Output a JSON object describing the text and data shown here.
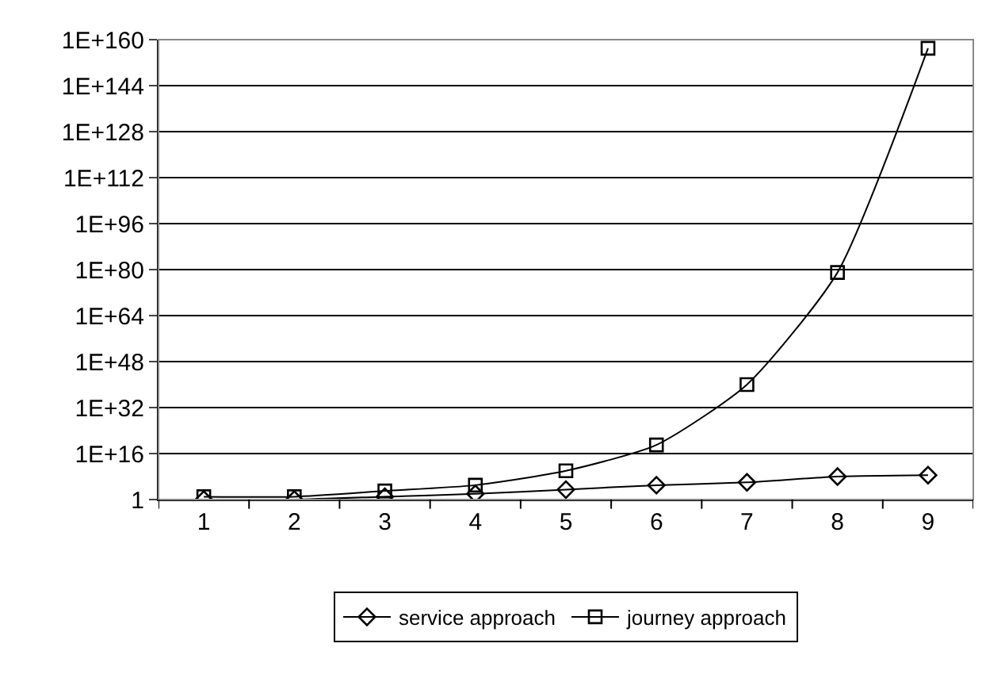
{
  "chart_data": {
    "type": "line",
    "categories": [
      "1",
      "2",
      "3",
      "4",
      "5",
      "6",
      "7",
      "8",
      "9"
    ],
    "series": [
      {
        "name": "service approach",
        "color": "#000000",
        "marker": "diamond",
        "values": [
          1,
          1,
          10,
          100,
          3000,
          100000.0,
          1000000.0,
          100000000.0,
          300000000.0
        ]
      },
      {
        "name": "journey approach",
        "color": "#000000",
        "marker": "square",
        "values": [
          10,
          10,
          1000,
          100000.0,
          10000000000.0,
          1e+19,
          1e+40,
          1e+79,
          1e+157
        ]
      }
    ],
    "log": "y",
    "ylim": [
      1,
      1e+160
    ],
    "yticks": [
      1,
      {
        "value": 1e+16,
        "label": "1E+16"
      },
      {
        "value": 1e+32,
        "label": "1E+32"
      },
      {
        "value": 1e+48,
        "label": "1E+48"
      },
      {
        "value": 1e+64,
        "label": "1E+64"
      },
      {
        "value": 1e+80,
        "label": "1E+80"
      },
      {
        "value": 1e+96,
        "label": "1E+96"
      },
      {
        "value": 1e+112,
        "label": "1E+112"
      },
      {
        "value": 1e+128,
        "label": "1E+128"
      },
      {
        "value": 1e+144,
        "label": "1E+144"
      },
      {
        "value": 1e+160,
        "label": "1E+160"
      }
    ],
    "grid": "y",
    "legend": "bottom"
  }
}
